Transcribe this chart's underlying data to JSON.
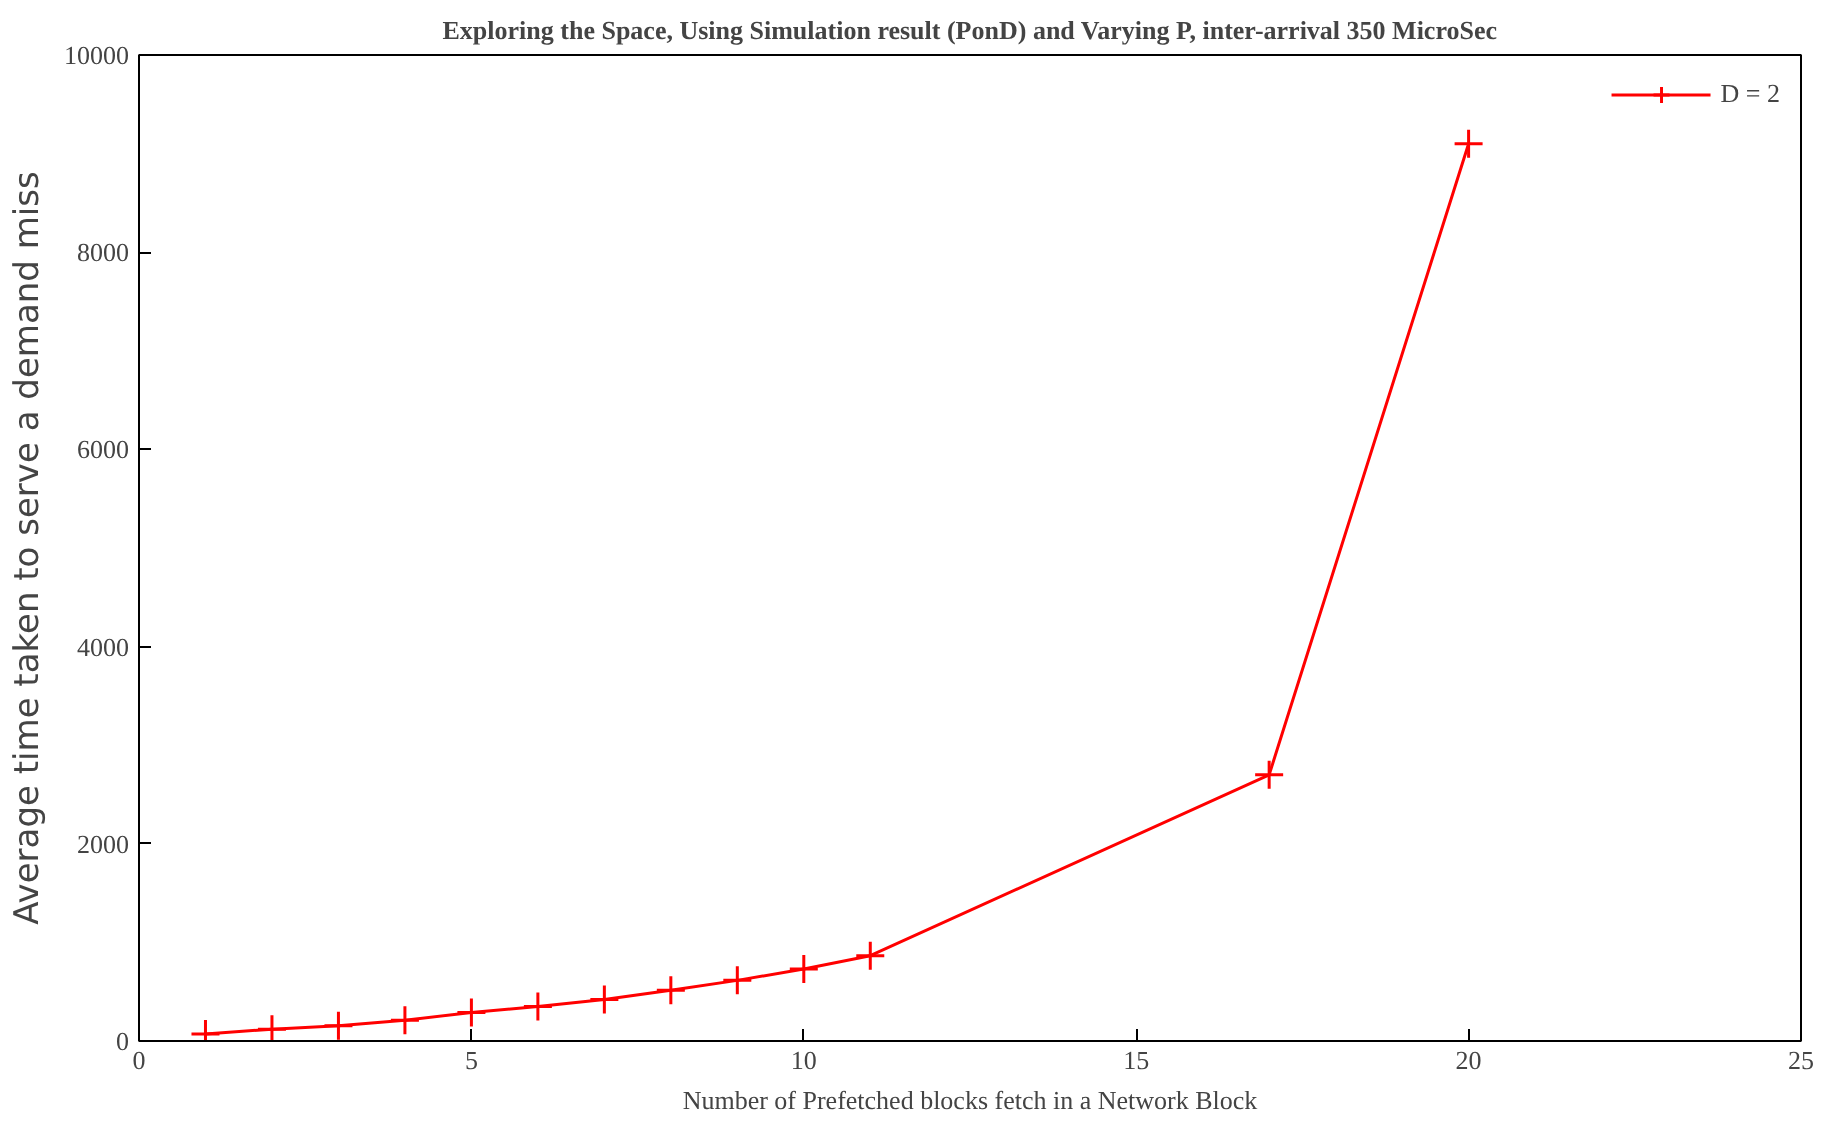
{
  "chart_data": {
    "type": "line",
    "title": "Exploring the Space, Using Simulation result (PonD) and Varying P, inter-arrival 350 MicroSec",
    "xlabel": "Number of Prefetched blocks fetch in a Network Block",
    "ylabel": "Average time taken to serve a demand miss",
    "x": [
      1,
      2,
      3,
      4,
      5,
      6,
      7,
      8,
      9,
      10,
      11,
      17,
      20
    ],
    "series": [
      {
        "name": "D = 2",
        "color": "#ff0000",
        "values": [
          70,
          120,
          155,
          210,
          290,
          350,
          420,
          515,
          615,
          730,
          865,
          2700,
          9100
        ]
      }
    ],
    "xlim": [
      0,
      25
    ],
    "xticks": [
      0,
      5,
      10,
      15,
      20,
      25
    ],
    "ylim": [
      0,
      10000
    ],
    "yticks": [
      0,
      2000,
      4000,
      6000,
      8000,
      10000
    ],
    "grid": false,
    "legend": "top right",
    "marker": "cross",
    "line_style": "solid"
  }
}
